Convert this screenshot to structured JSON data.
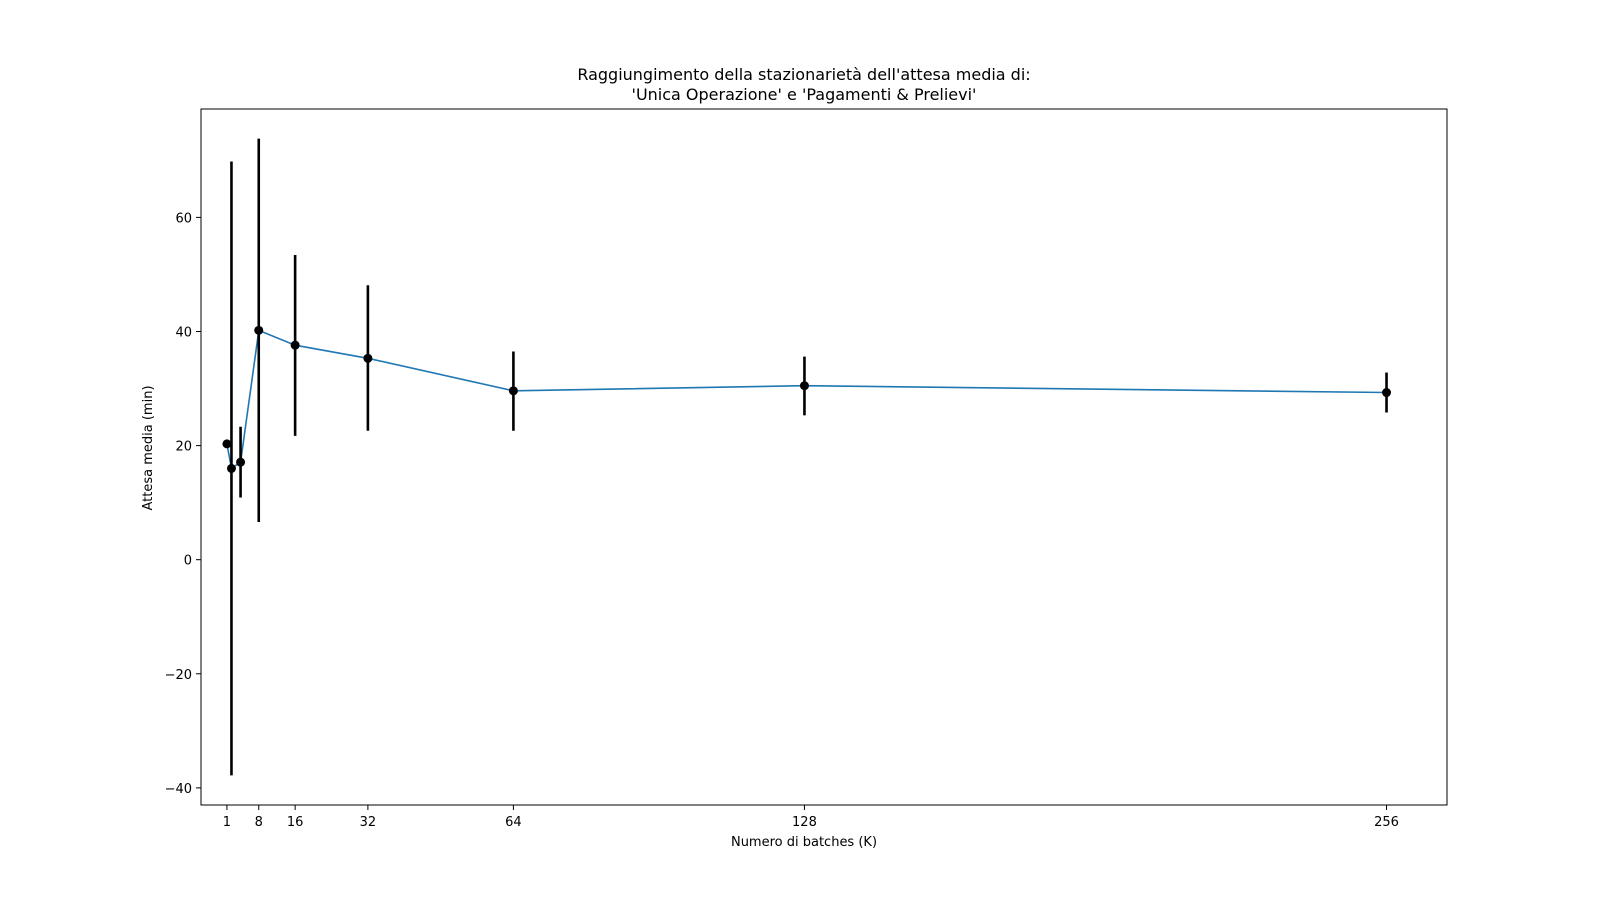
{
  "chart_data": {
    "type": "line",
    "title_lines": [
      "Raggiungimento della stazionarietà dell'attesa media di:",
      "'Unica Operazione' e 'Pagamenti & Prelievi'"
    ],
    "xlabel": "Numero di batches (K)",
    "ylabel": "Attesa media (min)",
    "xlim": [
      -4.7,
      269.3
    ],
    "ylim": [
      -43,
      79
    ],
    "xticks": [
      1,
      8,
      16,
      32,
      64,
      128,
      256
    ],
    "xtick_labels": [
      "1",
      "8",
      "16",
      "32",
      "64",
      "128",
      "256"
    ],
    "yticks": [
      -40,
      -20,
      0,
      20,
      40,
      60
    ],
    "ytick_labels": [
      "−40",
      "−20",
      "0",
      "20",
      "40",
      "60"
    ],
    "grid": false,
    "legend": "none",
    "series": [
      {
        "x": [
          1,
          2,
          4,
          8,
          16,
          32,
          64,
          128,
          256
        ],
        "y": [
          20.3,
          16.0,
          17.1,
          40.2,
          37.6,
          35.3,
          29.6,
          30.5,
          29.3
        ],
        "yerr_low": [
          20.3,
          -37.8,
          10.9,
          6.6,
          21.7,
          22.6,
          22.6,
          25.3,
          25.8
        ],
        "yerr_high": [
          20.3,
          69.8,
          23.3,
          73.8,
          53.4,
          48.1,
          36.5,
          35.6,
          32.8
        ]
      }
    ],
    "colors": {
      "line": "#1f77b4",
      "marker": "#000000",
      "errorbar": "#000000",
      "axes": "#000000"
    }
  }
}
